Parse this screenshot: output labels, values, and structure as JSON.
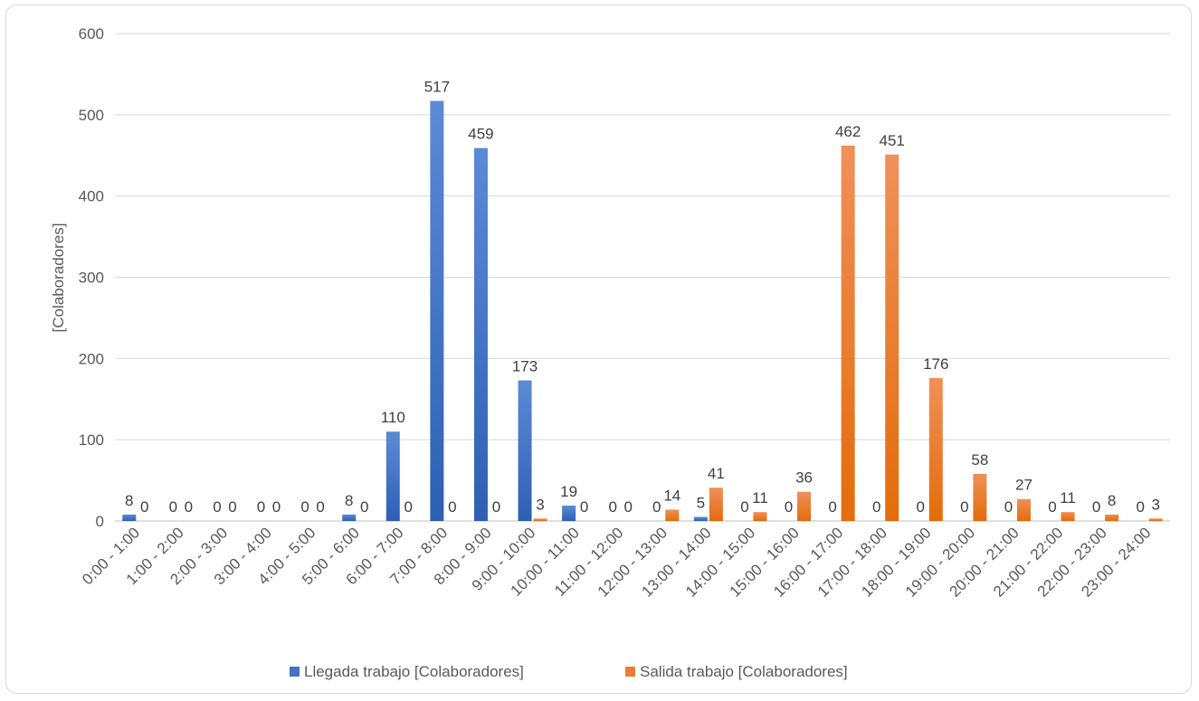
{
  "chart_data": {
    "type": "bar",
    "title": "",
    "xlabel": "",
    "ylabel": "[Colaboradores]",
    "ylim": [
      0,
      600
    ],
    "yticks": [
      0,
      100,
      200,
      300,
      400,
      500,
      600
    ],
    "grid": true,
    "legend_position": "bottom",
    "categories": [
      "0:00 - 1:00",
      "1:00 - 2:00",
      "2:00 - 3:00",
      "3:00 - 4:00",
      "4:00 - 5:00",
      "5:00 - 6:00",
      "6:00 - 7:00",
      "7:00 - 8:00",
      "8:00 - 9:00",
      "9:00 - 10:00",
      "10:00 - 11:00",
      "11:00 - 12:00",
      "12:00 - 13:00",
      "13:00 - 14:00",
      "14:00 - 15:00",
      "15:00 - 16:00",
      "16:00 - 17:00",
      "17:00 - 18:00",
      "18:00 - 19:00",
      "19:00 - 20:00",
      "20:00 - 21:00",
      "21:00 - 22:00",
      "22:00 - 23:00",
      "23:00 - 24:00"
    ],
    "series": [
      {
        "name": "Llegada trabajo [Colaboradores]",
        "color": "#4472c4",
        "values": [
          8,
          0,
          0,
          0,
          0,
          8,
          110,
          517,
          459,
          173,
          19,
          0,
          0,
          5,
          0,
          0,
          0,
          0,
          0,
          0,
          0,
          0,
          0,
          0
        ]
      },
      {
        "name": "Salida trabajo [Colaboradores]",
        "color": "#ed7d31",
        "values": [
          0,
          0,
          0,
          0,
          0,
          0,
          0,
          0,
          0,
          3,
          0,
          0,
          14,
          41,
          11,
          36,
          462,
          451,
          176,
          58,
          27,
          11,
          8,
          3
        ]
      }
    ]
  }
}
